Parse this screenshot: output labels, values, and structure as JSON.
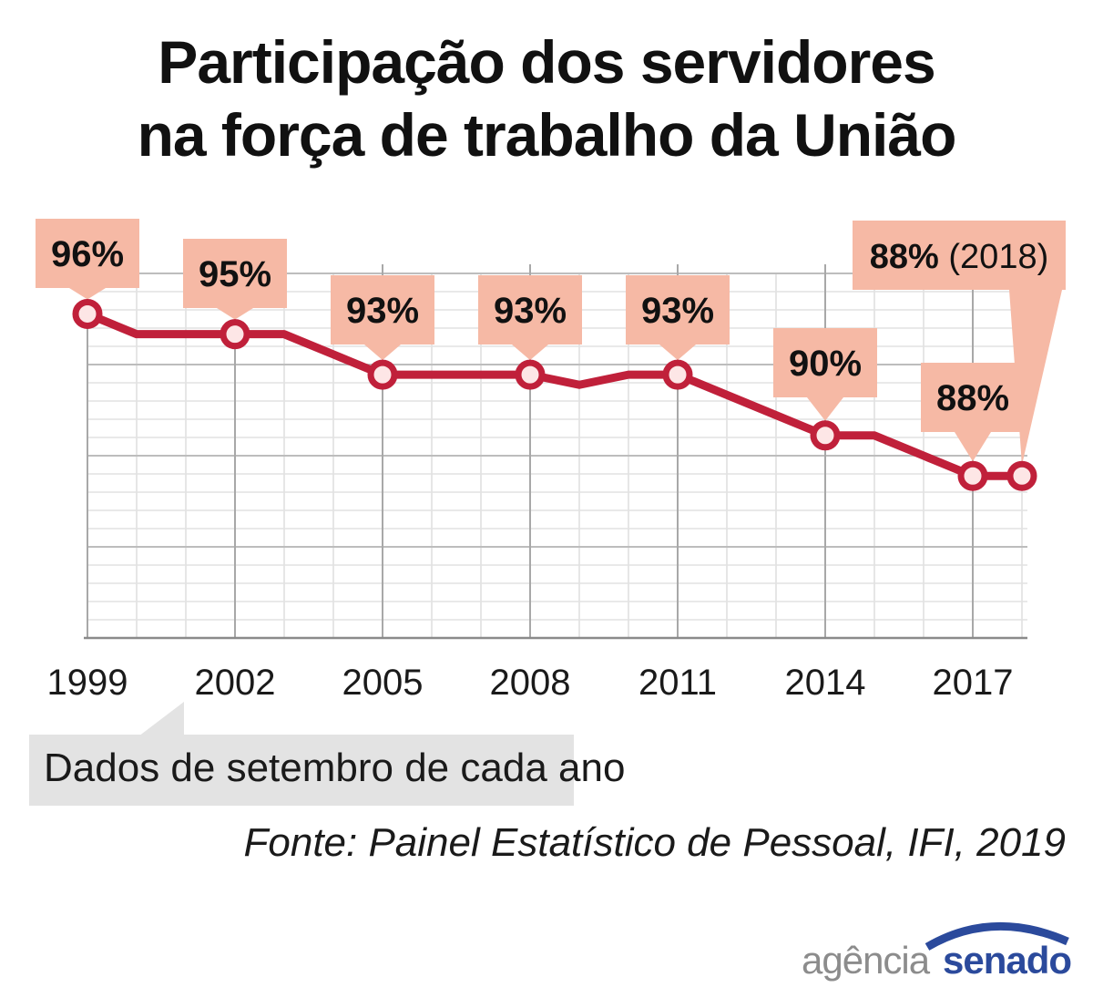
{
  "title_line1": "Participação dos servidores",
  "title_line2": "na força de trabalho da União",
  "note": "Dados de setembro de cada ano",
  "source": "Fonte: Painel Estatístico de Pessoal, IFI, 2019",
  "logo": {
    "part1": "agência",
    "part2": "senado"
  },
  "colors": {
    "line": "#c0203a",
    "callout": "#f6b9a5",
    "grid": "#bdbdbd",
    "note_bg": "#e3e3e3"
  },
  "chart_data": {
    "type": "line",
    "title": "Participação dos servidores na força de trabalho da União",
    "xlabel": "",
    "ylabel": "",
    "x": [
      1999,
      2000,
      2001,
      2002,
      2003,
      2004,
      2005,
      2006,
      2007,
      2008,
      2009,
      2010,
      2011,
      2012,
      2013,
      2014,
      2015,
      2016,
      2017,
      2018
    ],
    "values": [
      96,
      95,
      95,
      95,
      95,
      94,
      93,
      93,
      93,
      93,
      92.5,
      93,
      93,
      92,
      91,
      90,
      90,
      89,
      88,
      88
    ],
    "x_tick_labels": [
      "1999",
      "2002",
      "2005",
      "2008",
      "2011",
      "2014",
      "2017"
    ],
    "ylim": [
      80,
      98
    ],
    "grid": true,
    "labeled_points": [
      {
        "year": 1999,
        "label": "96%"
      },
      {
        "year": 2002,
        "label": "95%"
      },
      {
        "year": 2005,
        "label": "93%"
      },
      {
        "year": 2008,
        "label": "93%"
      },
      {
        "year": 2011,
        "label": "93%"
      },
      {
        "year": 2014,
        "label": "90%"
      },
      {
        "year": 2017,
        "label": "88%"
      },
      {
        "year": 2018,
        "label": "88%",
        "suffix": "(2018)"
      }
    ]
  }
}
